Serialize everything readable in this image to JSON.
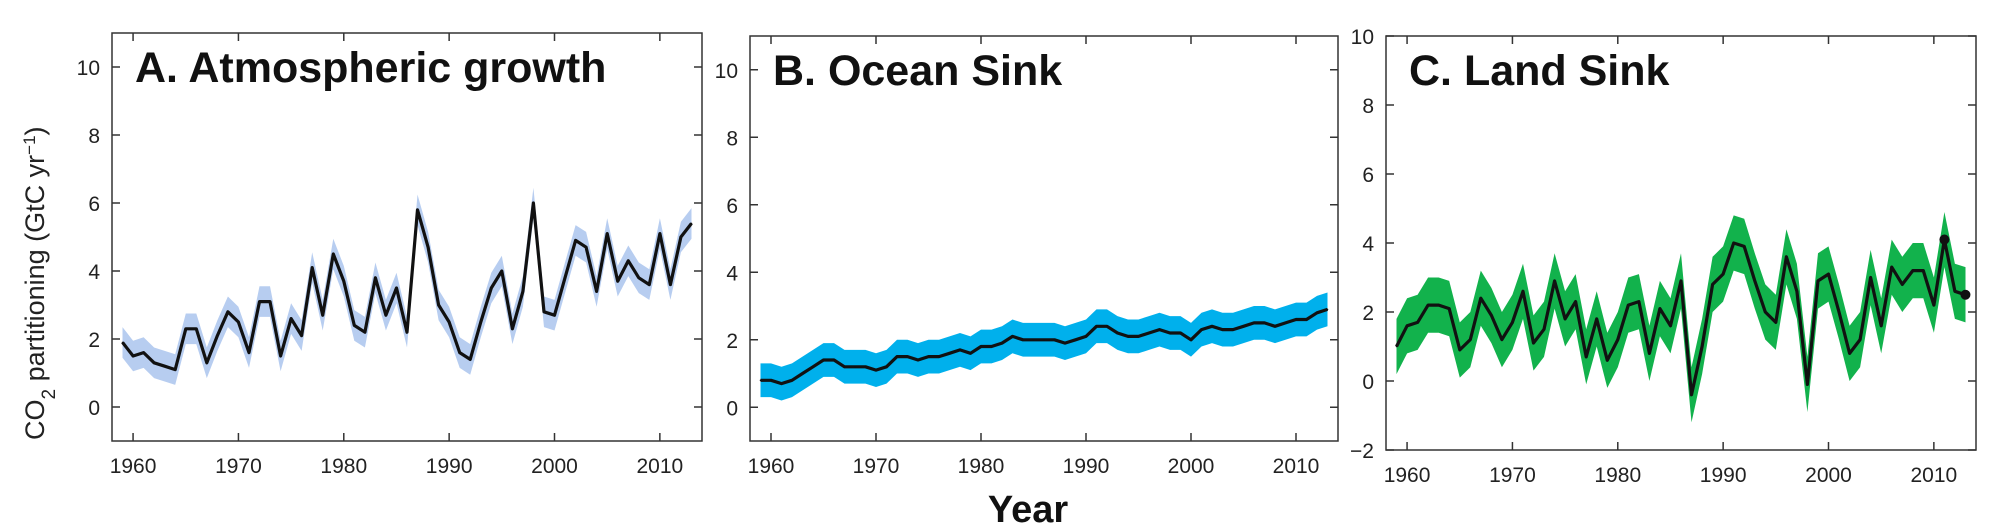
{
  "figure": {
    "xlabel": "Year",
    "ylabel_main": "CO",
    "ylabel_sub": "2",
    "ylabel_rest": " partitioning (GtC yr",
    "ylabel_sup": "−1",
    "ylabel_close": ")"
  },
  "chart_data": [
    {
      "type": "line",
      "title": "A. Atmospheric growth",
      "line_color": "#111111",
      "band_color": "#b7cdf0",
      "xlim": [
        1958,
        2014
      ],
      "ylim": [
        -1,
        11
      ],
      "xticks": [
        1960,
        1970,
        1980,
        1990,
        2000,
        2010
      ],
      "yticks": [
        0,
        2,
        4,
        6,
        8,
        10
      ],
      "band_halfwidth": 0.45,
      "x": [
        1959,
        1960,
        1961,
        1962,
        1963,
        1964,
        1965,
        1966,
        1967,
        1968,
        1969,
        1970,
        1971,
        1972,
        1973,
        1974,
        1975,
        1976,
        1977,
        1978,
        1979,
        1980,
        1981,
        1982,
        1983,
        1984,
        1985,
        1986,
        1987,
        1988,
        1989,
        1990,
        1991,
        1992,
        1993,
        1994,
        1995,
        1996,
        1997,
        1998,
        1999,
        2000,
        2001,
        2002,
        2003,
        2004,
        2005,
        2006,
        2007,
        2008,
        2009,
        2010,
        2011,
        2012,
        2013
      ],
      "y": [
        1.9,
        1.5,
        1.6,
        1.3,
        1.2,
        1.1,
        2.3,
        2.3,
        1.3,
        2.1,
        2.8,
        2.5,
        1.6,
        3.1,
        3.1,
        1.5,
        2.6,
        2.1,
        4.1,
        2.7,
        4.5,
        3.7,
        2.4,
        2.2,
        3.8,
        2.7,
        3.5,
        2.2,
        5.8,
        4.7,
        3.0,
        2.5,
        1.6,
        1.4,
        2.5,
        3.5,
        4.0,
        2.3,
        3.4,
        6.0,
        2.8,
        2.7,
        3.8,
        4.9,
        4.7,
        3.4,
        5.1,
        3.7,
        4.3,
        3.8,
        3.6,
        5.1,
        3.6,
        5.0,
        5.4
      ]
    },
    {
      "type": "line",
      "title": "B. Ocean Sink",
      "line_color": "#111111",
      "band_color": "#00b0ec",
      "xlim": [
        1958,
        2014
      ],
      "ylim": [
        -1,
        11
      ],
      "xticks": [
        1960,
        1970,
        1980,
        1990,
        2000,
        2010
      ],
      "yticks": [
        0,
        2,
        4,
        6,
        8,
        10
      ],
      "band_halfwidth": 0.5,
      "x": [
        1959,
        1960,
        1961,
        1962,
        1963,
        1964,
        1965,
        1966,
        1967,
        1968,
        1969,
        1970,
        1971,
        1972,
        1973,
        1974,
        1975,
        1976,
        1977,
        1978,
        1979,
        1980,
        1981,
        1982,
        1983,
        1984,
        1985,
        1986,
        1987,
        1988,
        1989,
        1990,
        1991,
        1992,
        1993,
        1994,
        1995,
        1996,
        1997,
        1998,
        1999,
        2000,
        2001,
        2002,
        2003,
        2004,
        2005,
        2006,
        2007,
        2008,
        2009,
        2010,
        2011,
        2012,
        2013
      ],
      "y": [
        0.8,
        0.8,
        0.7,
        0.8,
        1.0,
        1.2,
        1.4,
        1.4,
        1.2,
        1.2,
        1.2,
        1.1,
        1.2,
        1.5,
        1.5,
        1.4,
        1.5,
        1.5,
        1.6,
        1.7,
        1.6,
        1.8,
        1.8,
        1.9,
        2.1,
        2.0,
        2.0,
        2.0,
        2.0,
        1.9,
        2.0,
        2.1,
        2.4,
        2.4,
        2.2,
        2.1,
        2.1,
        2.2,
        2.3,
        2.2,
        2.2,
        2.0,
        2.3,
        2.4,
        2.3,
        2.3,
        2.4,
        2.5,
        2.5,
        2.4,
        2.5,
        2.6,
        2.6,
        2.8,
        2.9
      ]
    },
    {
      "type": "line",
      "title": "C. Land Sink",
      "line_color": "#111111",
      "band_color": "#12b24c",
      "xlim": [
        1958,
        2014
      ],
      "ylim": [
        -2,
        10
      ],
      "xticks": [
        1960,
        1970,
        1980,
        1990,
        2000,
        2010
      ],
      "yticks": [
        -2,
        0,
        2,
        4,
        6,
        8,
        10
      ],
      "band_halfwidth": 0.8,
      "x": [
        1959,
        1960,
        1961,
        1962,
        1963,
        1964,
        1965,
        1966,
        1967,
        1968,
        1969,
        1970,
        1971,
        1972,
        1973,
        1974,
        1975,
        1976,
        1977,
        1978,
        1979,
        1980,
        1981,
        1982,
        1983,
        1984,
        1985,
        1986,
        1987,
        1988,
        1989,
        1990,
        1991,
        1992,
        1993,
        1994,
        1995,
        1996,
        1997,
        1998,
        1999,
        2000,
        2001,
        2002,
        2003,
        2004,
        2005,
        2006,
        2007,
        2008,
        2009,
        2010,
        2011,
        2012,
        2013
      ],
      "y": [
        1.0,
        1.6,
        1.7,
        2.2,
        2.2,
        2.1,
        0.9,
        1.2,
        2.4,
        1.9,
        1.2,
        1.7,
        2.6,
        1.1,
        1.5,
        2.9,
        1.8,
        2.3,
        0.7,
        1.8,
        0.6,
        1.2,
        2.2,
        2.3,
        0.8,
        2.1,
        1.6,
        2.9,
        -0.4,
        1.0,
        2.8,
        3.1,
        4.0,
        3.9,
        2.9,
        2.0,
        1.7,
        3.6,
        2.6,
        -0.1,
        2.9,
        3.1,
        2.0,
        0.8,
        1.2,
        3.0,
        1.6,
        3.3,
        2.8,
        3.2,
        3.2,
        2.2,
        4.1,
        2.6,
        2.5
      ],
      "endpoint_markers": [
        2011,
        2013
      ]
    }
  ]
}
